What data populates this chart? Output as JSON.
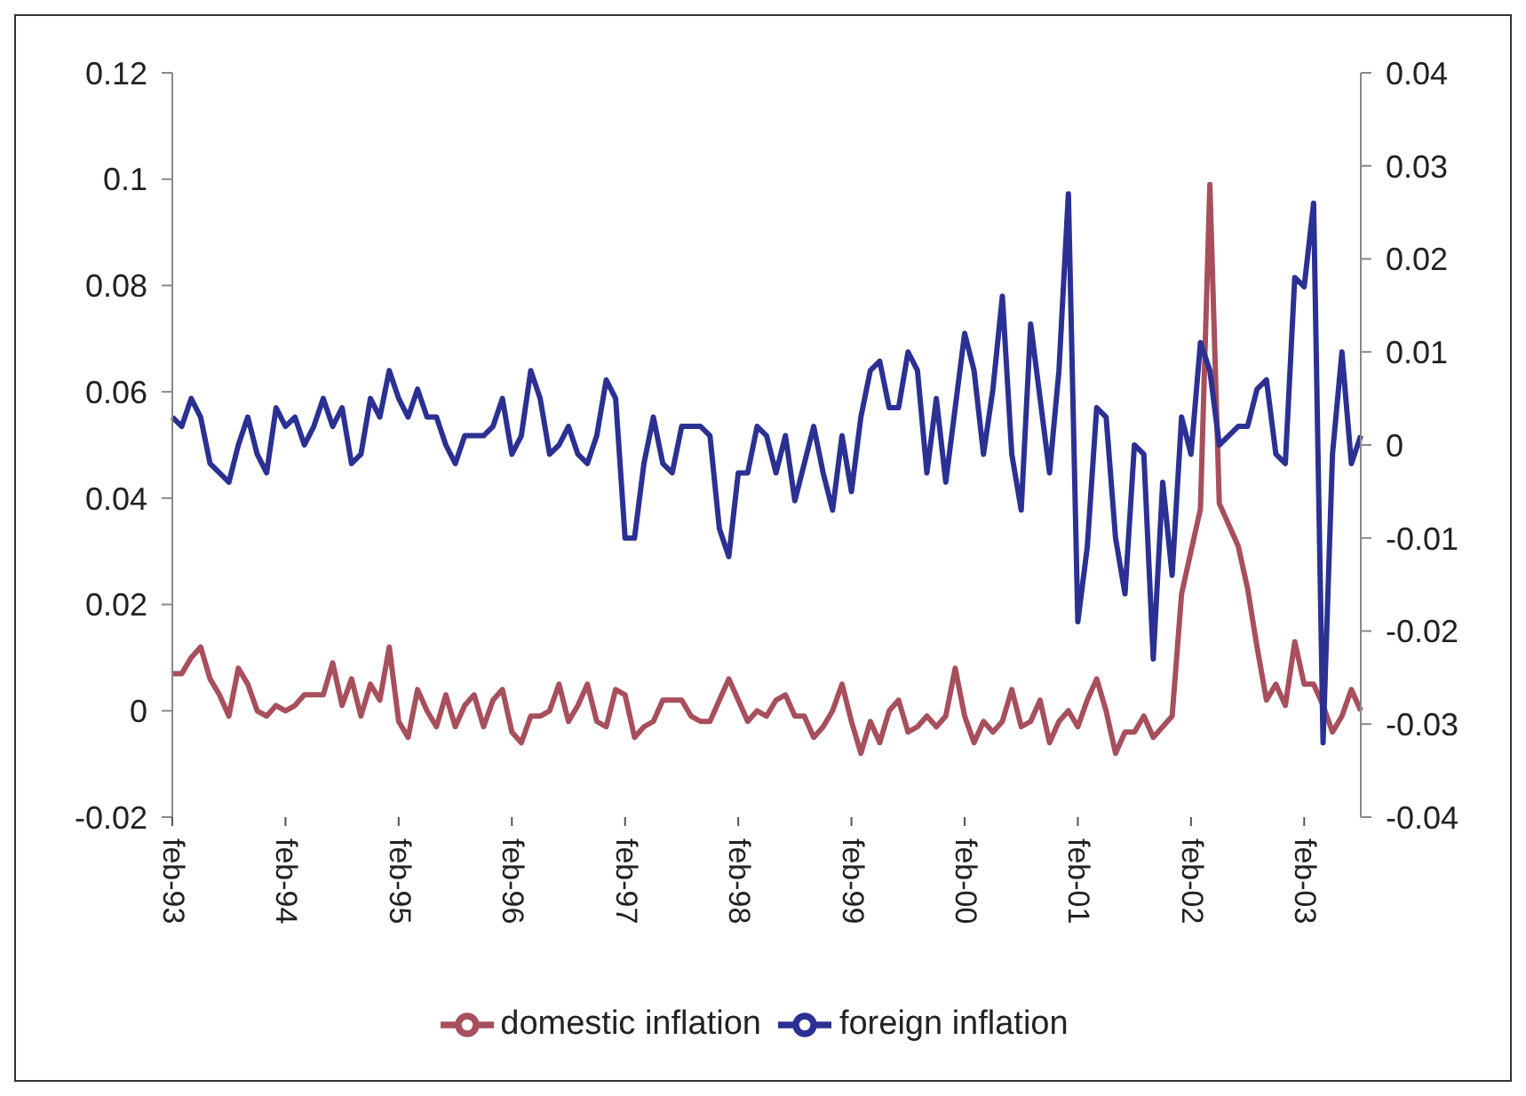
{
  "chart_data": {
    "type": "line",
    "categories": [
      "feb-93",
      null,
      null,
      null,
      null,
      null,
      null,
      null,
      null,
      null,
      null,
      null,
      "feb-94",
      null,
      null,
      null,
      null,
      null,
      null,
      null,
      null,
      null,
      null,
      null,
      "feb-95",
      null,
      null,
      null,
      null,
      null,
      null,
      null,
      null,
      null,
      null,
      null,
      "feb-96",
      null,
      null,
      null,
      null,
      null,
      null,
      null,
      null,
      null,
      null,
      null,
      "feb-97",
      null,
      null,
      null,
      null,
      null,
      null,
      null,
      null,
      null,
      null,
      null,
      "feb-98",
      null,
      null,
      null,
      null,
      null,
      null,
      null,
      null,
      null,
      null,
      null,
      "feb-99",
      null,
      null,
      null,
      null,
      null,
      null,
      null,
      null,
      null,
      null,
      null,
      "feb-00",
      null,
      null,
      null,
      null,
      null,
      null,
      null,
      null,
      null,
      null,
      null,
      "feb-01",
      null,
      null,
      null,
      null,
      null,
      null,
      null,
      null,
      null,
      null,
      null,
      "feb-02",
      null,
      null,
      null,
      null,
      null,
      null,
      null,
      null,
      null,
      null,
      null,
      "feb-03",
      null,
      null,
      null,
      null,
      null,
      null
    ],
    "series": [
      {
        "name": "domestic inflation",
        "color": "#a84f5c",
        "values": [
          0.007,
          0.007,
          0.01,
          0.012,
          0.006,
          0.003,
          -0.001,
          0.008,
          0.005,
          0.0,
          -0.001,
          0.001,
          0.0,
          0.001,
          0.003,
          0.003,
          0.003,
          0.009,
          0.001,
          0.006,
          -0.001,
          0.005,
          0.002,
          0.012,
          -0.002,
          -0.005,
          0.004,
          0.0,
          -0.003,
          0.003,
          -0.003,
          0.001,
          0.003,
          -0.003,
          0.002,
          0.004,
          -0.004,
          -0.006,
          -0.001,
          -0.001,
          0.0,
          0.005,
          -0.002,
          0.001,
          0.005,
          -0.002,
          -0.003,
          0.004,
          0.003,
          -0.005,
          -0.003,
          -0.002,
          0.002,
          0.002,
          0.002,
          -0.001,
          -0.002,
          -0.002,
          0.002,
          0.006,
          0.002,
          -0.002,
          0.0,
          -0.001,
          0.002,
          0.003,
          -0.001,
          -0.001,
          -0.005,
          -0.003,
          0.0,
          0.005,
          -0.002,
          -0.008,
          -0.002,
          -0.006,
          0.0,
          0.002,
          -0.004,
          -0.003,
          -0.001,
          -0.003,
          -0.001,
          0.008,
          -0.001,
          -0.006,
          -0.002,
          -0.004,
          -0.002,
          0.004,
          -0.003,
          -0.002,
          0.002,
          -0.006,
          -0.002,
          0.0,
          -0.003,
          0.002,
          0.006,
          0.0,
          -0.008,
          -0.004,
          -0.004,
          -0.001,
          -0.005,
          -0.003,
          -0.001,
          0.022,
          0.03,
          0.038,
          0.099,
          0.039,
          0.035,
          0.031,
          0.023,
          0.012,
          0.002,
          0.005,
          0.001,
          0.013,
          0.005,
          0.005,
          0.001,
          -0.004,
          -0.001,
          0.004,
          0.0
        ]
      },
      {
        "name": "foreign inflation",
        "color": "#2b3192",
        "axis": "y2",
        "values": [
          0.003,
          0.002,
          0.005,
          0.003,
          -0.002,
          -0.003,
          -0.004,
          0.0,
          0.003,
          -0.001,
          -0.003,
          0.004,
          0.002,
          0.003,
          0.0,
          0.002,
          0.005,
          0.002,
          0.004,
          -0.002,
          -0.001,
          0.005,
          0.003,
          0.008,
          0.005,
          0.003,
          0.006,
          0.003,
          0.003,
          0.0,
          -0.002,
          0.001,
          0.001,
          0.001,
          0.002,
          0.005,
          -0.001,
          0.001,
          0.008,
          0.005,
          -0.001,
          0.0,
          0.002,
          -0.001,
          -0.002,
          0.001,
          0.007,
          0.005,
          -0.01,
          -0.01,
          -0.002,
          0.003,
          -0.002,
          -0.003,
          0.002,
          0.002,
          0.002,
          0.001,
          -0.009,
          -0.012,
          -0.003,
          -0.003,
          0.002,
          0.001,
          -0.003,
          0.001,
          -0.006,
          -0.002,
          0.002,
          -0.003,
          -0.007,
          0.001,
          -0.005,
          0.003,
          0.008,
          0.009,
          0.004,
          0.004,
          0.01,
          0.008,
          -0.003,
          0.005,
          -0.004,
          0.004,
          0.012,
          0.008,
          -0.001,
          0.006,
          0.016,
          -0.001,
          -0.007,
          0.013,
          0.005,
          -0.003,
          0.008,
          0.027,
          -0.019,
          -0.011,
          0.004,
          0.003,
          -0.01,
          -0.016,
          0.0,
          -0.001,
          -0.023,
          -0.004,
          -0.014,
          0.003,
          -0.001,
          0.011,
          0.008,
          0.0,
          0.001,
          0.002,
          0.002,
          0.006,
          0.007,
          -0.001,
          -0.002,
          0.018,
          0.017,
          0.026,
          -0.032,
          -0.001,
          0.01,
          -0.002,
          0.001
        ]
      }
    ],
    "ylim": [
      -0.02,
      0.12
    ],
    "yticks": [
      -0.02,
      0,
      0.02,
      0.04,
      0.06,
      0.08,
      0.1,
      0.12
    ],
    "y2lim": [
      -0.04,
      0.04
    ],
    "y2ticks": [
      -0.04,
      -0.03,
      -0.02,
      -0.01,
      0,
      0.01,
      0.02,
      0.03,
      0.04
    ],
    "legend": "bottom",
    "marker": "none"
  }
}
